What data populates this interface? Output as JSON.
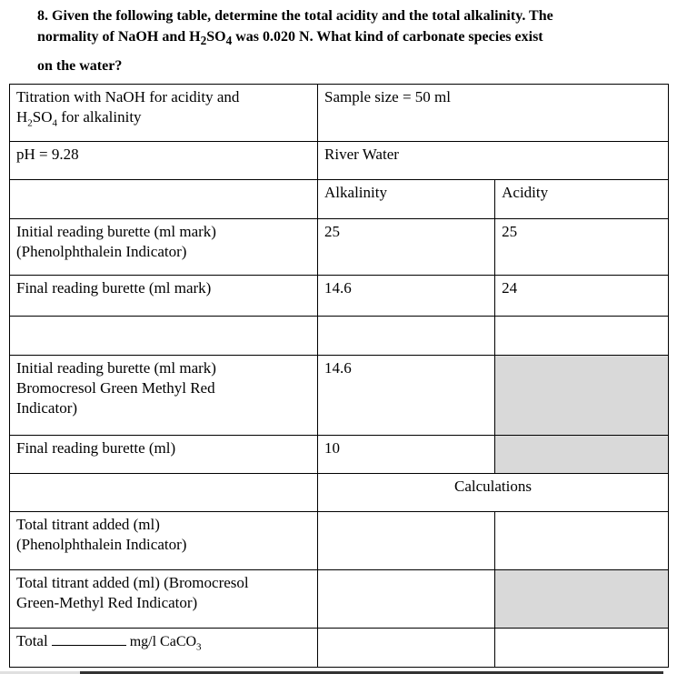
{
  "question": {
    "line1": "8. Given the following table, determine the total acidity and the total alkalinity. The",
    "line2_pre": "normality of NaOH and H",
    "sub2": "2",
    "mid": "SO",
    "sub4": "4",
    "line2_post": " was 0.020 N. What kind of carbonate species exist",
    "line3": "on the water?"
  },
  "table": {
    "r1": {
      "c1a": "Titration with NaOH for acidity and",
      "c1b_pre": "H",
      "c1b_sub": "2",
      "c1b_mid": "SO",
      "c1b_sub2": "4",
      "c1b_post": " for alkalinity",
      "c2": "Sample size = 50 ml"
    },
    "r2": {
      "c1": "pH = 9.28",
      "c2": "River Water"
    },
    "r3": {
      "c2": "Alkalinity",
      "c3": "Acidity"
    },
    "r4": {
      "c1a": "Initial reading burette (ml mark)",
      "c1b": "(Phenolphthalein Indicator)",
      "c2": "25",
      "c3": "25"
    },
    "r5": {
      "c1": "Final reading burette (ml mark)",
      "c2": "14.6",
      "c3": "24"
    },
    "r7": {
      "c1a": "Initial reading burette (ml mark)",
      "c1b": "Bromocresol Green Methyl Red",
      "c1c": "Indicator)",
      "c2": "14.6"
    },
    "r8": {
      "c1": "Final reading burette (ml)",
      "c2": "10"
    },
    "r9": {
      "c23": "Calculations"
    },
    "r10": {
      "c1a": "Total titrant added (ml)",
      "c1b": "(Phenolphthalein Indicator)"
    },
    "r11": {
      "c1a": "Total titrant added (ml) (Bromocresol",
      "c1b": "Green-Methyl Red Indicator)"
    },
    "r12": {
      "c1a": "Total",
      "c1b": "mg/l CaCO",
      "c1b_sub": "3"
    }
  },
  "colors": {
    "shaded": "#d9d9d9"
  }
}
